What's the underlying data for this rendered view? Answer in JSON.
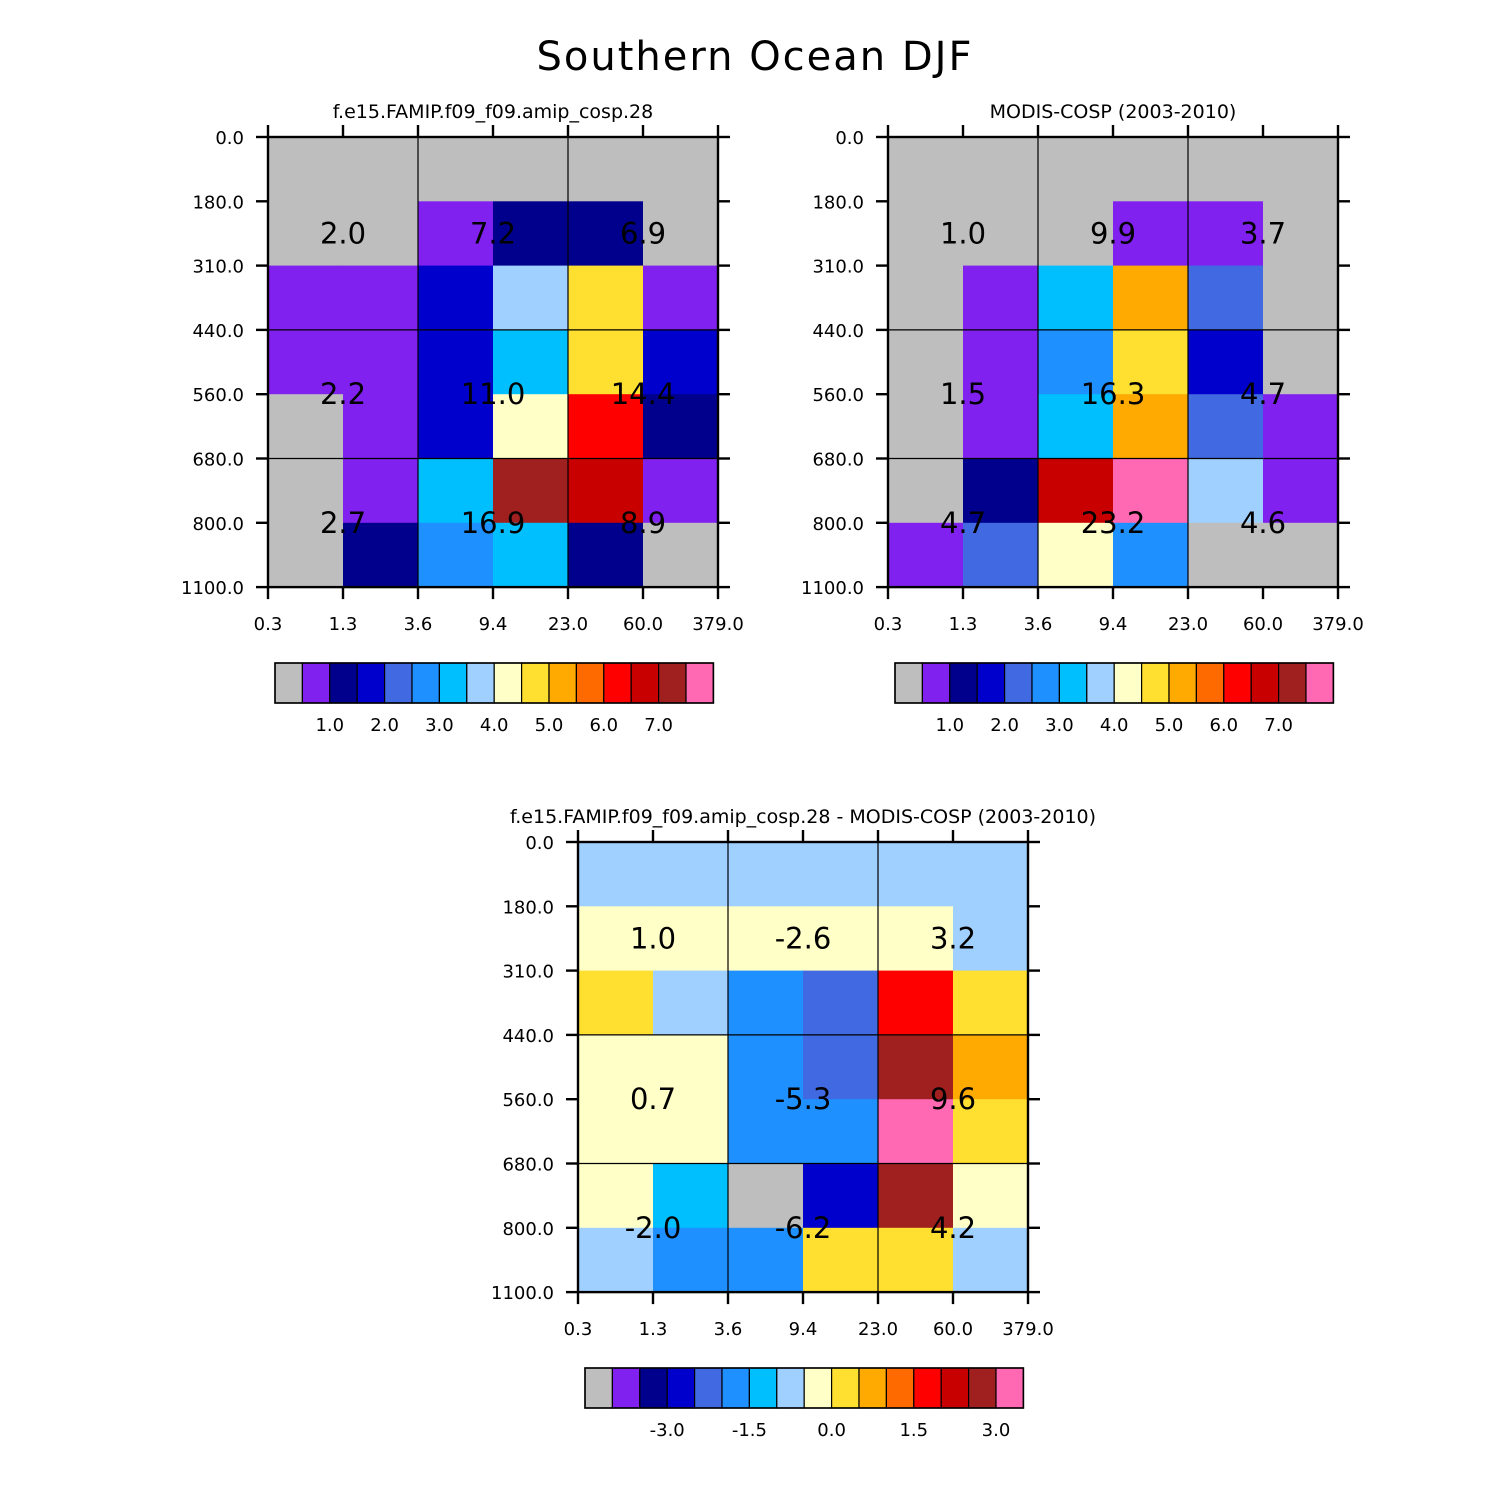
{
  "figure": {
    "title": "Southern Ocean DJF"
  },
  "colors": {
    "palette": [
      "#bebebe",
      "#8021ef",
      "#00008c",
      "#0000cd",
      "#4169e1",
      "#1e90ff",
      "#00bfff",
      "#a0d0ff",
      "#ffffc8",
      "#ffe030",
      "#ffaa00",
      "#ff6a00",
      "#ff0000",
      "#c80000",
      "#a02020",
      "#ff69b4"
    ]
  },
  "chart_data": [
    {
      "type": "heatmap",
      "name": "model",
      "title": "f.e15.FAMIP.f09_f09.amip_cosp.28",
      "x_ticks": [
        "0.3",
        "1.3",
        "3.6",
        "9.4",
        "23.0",
        "60.0",
        "379.0"
      ],
      "y_ticks": [
        "0.0",
        "180.0",
        "310.0",
        "440.0",
        "560.0",
        "680.0",
        "800.0",
        "1100.0"
      ],
      "cell_color_index": [
        [
          0,
          0,
          0,
          0,
          0,
          0
        ],
        [
          0,
          0,
          1,
          2,
          2,
          0
        ],
        [
          1,
          1,
          3,
          7,
          9,
          1
        ],
        [
          1,
          1,
          3,
          6,
          9,
          3
        ],
        [
          0,
          1,
          3,
          8,
          12,
          2
        ],
        [
          0,
          1,
          6,
          14,
          13,
          1
        ],
        [
          0,
          2,
          5,
          6,
          2,
          0
        ]
      ],
      "group_values": [
        [
          "2.0",
          "7.2",
          "6.9"
        ],
        [
          "2.2",
          "11.0",
          "14.4"
        ],
        [
          "2.7",
          "16.9",
          "8.9"
        ]
      ],
      "colorbar_labels": [
        "1.0",
        "2.0",
        "3.0",
        "4.0",
        "5.0",
        "6.0",
        "7.0"
      ]
    },
    {
      "type": "heatmap",
      "name": "obs",
      "title": "MODIS-COSP (2003-2010)",
      "x_ticks": [
        "0.3",
        "1.3",
        "3.6",
        "9.4",
        "23.0",
        "60.0",
        "379.0"
      ],
      "y_ticks": [
        "0.0",
        "180.0",
        "310.0",
        "440.0",
        "560.0",
        "680.0",
        "800.0",
        "1100.0"
      ],
      "cell_color_index": [
        [
          0,
          0,
          0,
          0,
          0,
          0
        ],
        [
          0,
          0,
          0,
          1,
          1,
          0
        ],
        [
          0,
          1,
          6,
          10,
          4,
          0
        ],
        [
          0,
          1,
          5,
          9,
          3,
          0
        ],
        [
          0,
          1,
          6,
          10,
          4,
          1
        ],
        [
          0,
          2,
          13,
          15,
          7,
          1
        ],
        [
          1,
          4,
          8,
          5,
          0,
          0
        ]
      ],
      "group_values": [
        [
          "1.0",
          "9.9",
          "3.7"
        ],
        [
          "1.5",
          "16.3",
          "4.7"
        ],
        [
          "4.7",
          "23.2",
          "4.6"
        ]
      ],
      "colorbar_labels": [
        "1.0",
        "2.0",
        "3.0",
        "4.0",
        "5.0",
        "6.0",
        "7.0"
      ]
    },
    {
      "type": "heatmap",
      "name": "diff",
      "title": "f.e15.FAMIP.f09_f09.amip_cosp.28 - MODIS-COSP (2003-2010)",
      "x_ticks": [
        "0.3",
        "1.3",
        "3.6",
        "9.4",
        "23.0",
        "60.0",
        "379.0"
      ],
      "y_ticks": [
        "0.0",
        "180.0",
        "310.0",
        "440.0",
        "560.0",
        "680.0",
        "800.0",
        "1100.0"
      ],
      "cell_color_index": [
        [
          7,
          7,
          7,
          7,
          7,
          7
        ],
        [
          8,
          8,
          8,
          8,
          8,
          7
        ],
        [
          9,
          7,
          5,
          4,
          12,
          9
        ],
        [
          8,
          8,
          5,
          4,
          14,
          10
        ],
        [
          8,
          8,
          5,
          5,
          15,
          9
        ],
        [
          8,
          6,
          0,
          3,
          14,
          8
        ],
        [
          7,
          5,
          5,
          9,
          9,
          7
        ]
      ],
      "group_values": [
        [
          "1.0",
          "-2.6",
          "3.2"
        ],
        [
          "0.7",
          "-5.3",
          "9.6"
        ],
        [
          "-2.0",
          "-6.2",
          "4.2"
        ]
      ],
      "colorbar_labels": [
        "-3.0",
        "-1.5",
        "0.0",
        "1.5",
        "3.0"
      ]
    }
  ]
}
